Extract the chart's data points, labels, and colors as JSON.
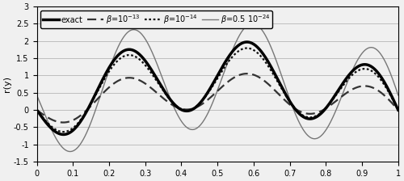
{
  "title": "",
  "xlabel": "",
  "ylabel": "r(y)",
  "xlim": [
    0,
    1
  ],
  "ylim": [
    -1.5,
    3
  ],
  "yticks": [
    -1.5,
    -1,
    -0.5,
    0,
    0.5,
    1,
    1.5,
    2,
    2.5,
    3
  ],
  "xticks": [
    0,
    0.1,
    0.2,
    0.3,
    0.4,
    0.5,
    0.6,
    0.7,
    0.8,
    0.9,
    1
  ],
  "curves": {
    "exact": {
      "lw": 2.5,
      "color": "#000000",
      "ls": "solid"
    },
    "b1e13": {
      "lw": 1.6,
      "color": "#333333",
      "ls": "dashed",
      "poly_scale": 0.55,
      "sin_scale": 0.52,
      "sin_phase": 0.0
    },
    "b1e14": {
      "lw": 1.6,
      "color": "#111111",
      "ls": "dotted",
      "poly_scale": 0.92,
      "sin_scale": 0.9,
      "sin_phase": 0.0
    },
    "b05e24": {
      "lw": 1.0,
      "color": "#777777",
      "ls": "solid",
      "poly_scale": 1.0,
      "sin_scale": 1.55,
      "sin_phase": -0.28
    }
  },
  "legend_fontsize": 7,
  "tick_fontsize": 7,
  "ylabel_fontsize": 8
}
